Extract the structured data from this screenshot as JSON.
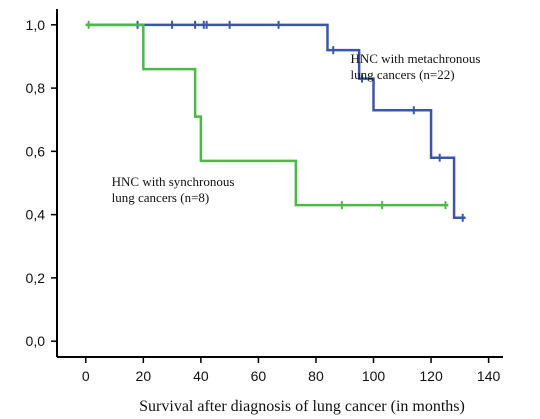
{
  "chart_data": {
    "type": "line",
    "xlabel": "Survival after diagnosis of lung cancer (in months)",
    "ylabel": "",
    "xlim": [
      -10,
      145
    ],
    "ylim": [
      -0.05,
      1.05
    ],
    "x_ticks": [
      "0",
      "20",
      "40",
      "60",
      "80",
      "100",
      "120",
      "140"
    ],
    "x_tick_values": [
      0,
      20,
      40,
      60,
      80,
      100,
      120,
      140
    ],
    "y_ticks": [
      "0,0",
      "0,2",
      "0,4",
      "0,6",
      "0,8",
      "1,0"
    ],
    "y_tick_values": [
      0,
      0.2,
      0.4,
      0.6,
      0.8,
      1.0
    ],
    "grid": false,
    "series": [
      {
        "color": "#3a56a8",
        "steps": [
          [
            0,
            1.0
          ],
          [
            84,
            0.92
          ],
          [
            95,
            0.83
          ],
          [
            100,
            0.73
          ],
          [
            120,
            0.58
          ],
          [
            128,
            0.39
          ],
          [
            132,
            0.39
          ]
        ],
        "censored": [
          [
            18,
            1.0
          ],
          [
            30,
            1.0
          ],
          [
            38,
            1.0
          ],
          [
            41,
            1.0
          ],
          [
            42,
            1.0
          ],
          [
            50,
            1.0
          ],
          [
            67,
            1.0
          ],
          [
            86,
            0.92
          ],
          [
            96,
            0.83
          ],
          [
            114,
            0.73
          ],
          [
            123,
            0.58
          ],
          [
            131,
            0.39
          ]
        ]
      },
      {
        "color": "#4cb848",
        "steps": [
          [
            0,
            1.0
          ],
          [
            20,
            0.86
          ],
          [
            38,
            0.71
          ],
          [
            40,
            0.57
          ],
          [
            73,
            0.43
          ],
          [
            126,
            0.43
          ]
        ],
        "censored": [
          [
            1,
            1.0
          ],
          [
            89,
            0.43
          ],
          [
            103,
            0.43
          ],
          [
            125,
            0.43
          ]
        ]
      }
    ],
    "annotations": [
      {
        "lines": [
          "HNC with metachronous",
          "lung cancers (n=22)"
        ],
        "x": 92,
        "y": 0.88
      },
      {
        "lines": [
          "HNC with synchronous",
          "lung cancers (n=8)"
        ],
        "x": 9,
        "y": 0.49
      }
    ]
  }
}
